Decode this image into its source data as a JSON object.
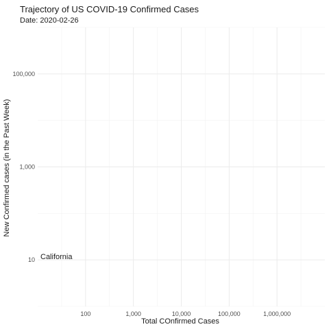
{
  "chart_data": {
    "type": "scatter",
    "title": "Trajectory of US COVID-19 Confirmed Cases",
    "subtitle": "Date: 2020-02-26",
    "xlabel": "Total COnfirmed Cases",
    "ylabel": "New Confirmed cases (in the Past Week)",
    "x_scale": "log10",
    "y_scale": "log10",
    "xlim": [
      10,
      10000000
    ],
    "ylim": [
      1,
      1000000
    ],
    "x_ticks": [
      100,
      1000,
      10000,
      100000,
      1000000
    ],
    "x_tick_labels": [
      "100",
      "1,000",
      "10,000",
      "100,000",
      "1,000,000"
    ],
    "y_ticks": [
      10,
      1000,
      100000
    ],
    "y_tick_labels": [
      "10",
      "1,000",
      "100,000"
    ],
    "grid": true,
    "legend": "none",
    "series": [
      {
        "name": "California",
        "points": [
          {
            "x": 10,
            "y": 12
          }
        ]
      }
    ]
  }
}
